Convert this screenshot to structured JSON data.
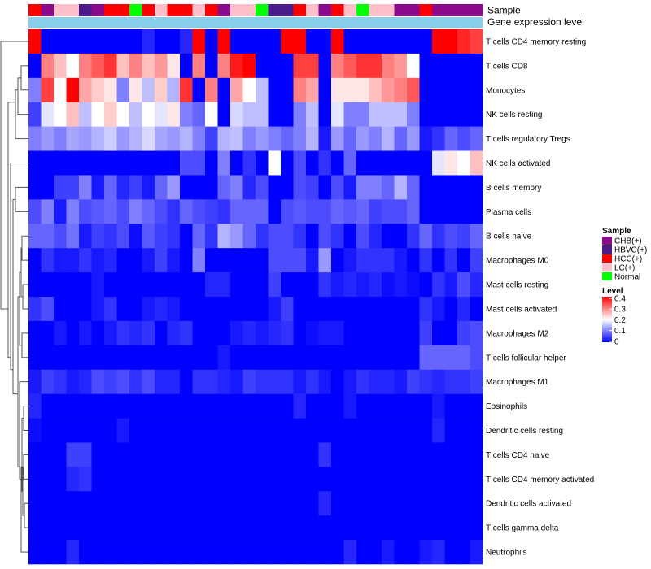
{
  "chart_data": {
    "type": "heatmap",
    "title": "",
    "annotation_tracks": [
      {
        "name": "Sample",
        "kind": "categorical"
      },
      {
        "name": "Gene expression level",
        "kind": "continuous"
      }
    ],
    "sample_annotation": [
      "HCC(+)",
      "CHB(+)",
      "LC(+)",
      "LC(+)",
      "HBVC(+)",
      "CHB(+)",
      "HCC(+)",
      "HCC(+)",
      "Normal",
      "HCC(+)",
      "LC(+)",
      "HCC(+)",
      "HCC(+)",
      "LC(+)",
      "HCC(+)",
      "CHB(+)",
      "LC(+)",
      "LC(+)",
      "Normal",
      "HBVC(+)",
      "HBVC(+)",
      "HCC(+)",
      "LC(+)",
      "CHB(+)",
      "HCC(+)",
      "LC(+)",
      "Normal",
      "LC(+)",
      "LC(+)",
      "CHB(+)",
      "CHB(+)",
      "HCC(+)",
      "CHB(+)",
      "CHB(+)",
      "CHB(+)",
      "CHB(+)"
    ],
    "rows": [
      "T cells CD4 memory resting",
      "T cells CD8",
      "Monocytes",
      "NK cells resting",
      "T cells regulatory  Tregs",
      "NK cells activated",
      "B cells memory",
      "Plasma cells",
      "B cells naive",
      "Macrophages M0",
      "Mast cells resting",
      "Mast cells activated",
      "Macrophages M2",
      "T cells follicular helper",
      "Macrophages M1",
      "Eosinophils",
      "Dendritic cells resting",
      "T cells CD4 naive",
      "T cells CD4 memory activated",
      "Dendritic cells activated",
      "T cells gamma delta",
      "Neutrophils"
    ],
    "values": [
      [
        0.4,
        0,
        0,
        0,
        0,
        0,
        0,
        0,
        0,
        0.03,
        0,
        0,
        0.03,
        0.4,
        0,
        0.4,
        0,
        0,
        0,
        0,
        0.4,
        0.4,
        0,
        0,
        0.4,
        0,
        0,
        0,
        0,
        0,
        0,
        0,
        0.4,
        0.4,
        0.37,
        0.35
      ],
      [
        0,
        0.3,
        0.25,
        0.2,
        0.3,
        0.33,
        0.36,
        0.25,
        0.3,
        0.25,
        0.28,
        0.22,
        0,
        0.3,
        0,
        0.3,
        0.38,
        0.4,
        0,
        0,
        0,
        0.35,
        0.35,
        0,
        0.3,
        0.33,
        0.36,
        0.36,
        0.3,
        0.28,
        0.2,
        0,
        0,
        0,
        0,
        0
      ],
      [
        0.1,
        0.35,
        0.2,
        0.4,
        0.27,
        0.24,
        0.22,
        0.1,
        0.22,
        0.15,
        0.24,
        0.14,
        0.36,
        0,
        0.3,
        0,
        0.27,
        0.2,
        0.15,
        0,
        0,
        0.3,
        0.27,
        0,
        0.22,
        0.22,
        0.22,
        0.25,
        0.28,
        0.3,
        0.33,
        0,
        0,
        0,
        0,
        0
      ],
      [
        0.05,
        0.18,
        0.2,
        0.25,
        0.15,
        0.2,
        0.24,
        0.2,
        0.15,
        0.2,
        0.18,
        0.22,
        0.1,
        0.08,
        0.2,
        0,
        0.17,
        0.15,
        0.15,
        0,
        0,
        0.1,
        0.15,
        0,
        0.18,
        0.1,
        0.1,
        0.15,
        0.15,
        0.15,
        0.1,
        0,
        0,
        0,
        0,
        0
      ],
      [
        0.1,
        0.12,
        0.1,
        0.13,
        0.12,
        0.14,
        0.16,
        0.12,
        0.14,
        0.17,
        0.13,
        0.12,
        0.14,
        0.1,
        0.05,
        0.14,
        0.15,
        0.1,
        0.12,
        0.1,
        0.08,
        0.1,
        0.14,
        0.02,
        0.12,
        0.08,
        0.12,
        0.1,
        0.14,
        0.08,
        0.12,
        0.02,
        0.04,
        0.08,
        0.06,
        0.08
      ],
      [
        0,
        0,
        0,
        0,
        0,
        0,
        0,
        0,
        0,
        0,
        0,
        0,
        0.06,
        0.06,
        0,
        0.1,
        0,
        0.04,
        0,
        0.2,
        0,
        0.06,
        0,
        0.04,
        0,
        0.08,
        0,
        0,
        0,
        0,
        0,
        0,
        0.18,
        0.22,
        0.2,
        0.25
      ],
      [
        0,
        0,
        0.05,
        0.05,
        0.1,
        0.02,
        0.08,
        0.03,
        0.05,
        0.02,
        0.08,
        0.12,
        0,
        0,
        0,
        0.08,
        0.1,
        0.03,
        0.06,
        0,
        0,
        0.06,
        0.05,
        0,
        0.06,
        0.02,
        0.1,
        0.1,
        0.08,
        0.14,
        0.08,
        0,
        0,
        0,
        0,
        0
      ],
      [
        0.06,
        0.1,
        0.02,
        0.1,
        0.06,
        0.07,
        0.08,
        0.06,
        0.1,
        0.08,
        0.06,
        0.04,
        0.08,
        0.06,
        0.05,
        0.04,
        0.08,
        0.08,
        0.08,
        0,
        0.06,
        0.07,
        0.06,
        0.06,
        0.08,
        0.07,
        0.08,
        0.05,
        0.06,
        0.06,
        0.08,
        0,
        0,
        0,
        0,
        0
      ],
      [
        0.08,
        0.08,
        0.06,
        0.09,
        0.02,
        0.05,
        0.04,
        0.06,
        0.01,
        0.07,
        0.05,
        0.04,
        0,
        0.08,
        0.04,
        0.14,
        0.12,
        0.08,
        0.04,
        0.06,
        0.06,
        0.04,
        0,
        0.06,
        0.04,
        0,
        0.06,
        0.03,
        0,
        0,
        0.04,
        0.08,
        0.04,
        0.06,
        0.05,
        0.08
      ],
      [
        0,
        0.04,
        0.02,
        0.02,
        0.04,
        0.02,
        0.03,
        0,
        0,
        0.02,
        0.05,
        0.02,
        0,
        0.1,
        0,
        0,
        0,
        0,
        0,
        0.06,
        0.06,
        0.06,
        0.02,
        0.12,
        0,
        0.02,
        0.04,
        0.04,
        0.04,
        0.02,
        0,
        0.04,
        0,
        0.04,
        0,
        0.05
      ],
      [
        0,
        0,
        0,
        0,
        0,
        0.02,
        0,
        0,
        0,
        0,
        0,
        0,
        0,
        0,
        0.03,
        0.03,
        0,
        0,
        0,
        0.05,
        0,
        0,
        0,
        0.04,
        0.02,
        0.03,
        0.02,
        0.03,
        0.01,
        0.02,
        0.01,
        0,
        0.04,
        0.02,
        0.06,
        0.03
      ],
      [
        0.04,
        0.06,
        0,
        0,
        0,
        0.02,
        0.04,
        0,
        0,
        0.02,
        0.03,
        0.02,
        0,
        0,
        0,
        0,
        0,
        0,
        0,
        0.02,
        0.05,
        0,
        0,
        0,
        0,
        0,
        0,
        0,
        0,
        0,
        0,
        0.04,
        0.02,
        0,
        0.03,
        0
      ],
      [
        0,
        0,
        0.02,
        0,
        0.02,
        0,
        0.02,
        0.04,
        0.03,
        0.04,
        0,
        0.03,
        0.04,
        0,
        0,
        0,
        0.02,
        0.03,
        0.02,
        0.03,
        0.04,
        0,
        0.01,
        0.02,
        0.02,
        0,
        0,
        0,
        0,
        0,
        0,
        0.05,
        0,
        0,
        0.05,
        0.06
      ],
      [
        0,
        0,
        0,
        0,
        0,
        0,
        0,
        0,
        0,
        0,
        0,
        0,
        0,
        0,
        0,
        0.02,
        0,
        0,
        0,
        0,
        0,
        0,
        0,
        0,
        0,
        0,
        0,
        0,
        0,
        0,
        0,
        0.08,
        0.08,
        0.08,
        0.08,
        0.06
      ],
      [
        0.02,
        0.05,
        0.04,
        0.02,
        0.03,
        0.06,
        0.05,
        0.06,
        0.04,
        0.06,
        0.03,
        0.03,
        0,
        0.04,
        0.04,
        0.03,
        0.02,
        0.05,
        0.04,
        0.04,
        0.04,
        0.02,
        0.04,
        0.02,
        0,
        0.02,
        0.04,
        0.03,
        0.03,
        0.02,
        0.05,
        0.04,
        0.03,
        0.04,
        0.04,
        0.05
      ],
      [
        0.03,
        0,
        0,
        0,
        0,
        0,
        0,
        0,
        0,
        0,
        0,
        0,
        0,
        0,
        0,
        0,
        0,
        0,
        0,
        0,
        0,
        0.03,
        0,
        0,
        0,
        0.02,
        0,
        0,
        0,
        0,
        0,
        0,
        0.02,
        0,
        0,
        0
      ],
      [
        0.01,
        0,
        0,
        0,
        0,
        0,
        0,
        0.02,
        0,
        0,
        0,
        0,
        0,
        0,
        0,
        0,
        0,
        0,
        0,
        0,
        0,
        0,
        0,
        0,
        0,
        0,
        0,
        0,
        0,
        0,
        0,
        0,
        0.03,
        0,
        0,
        0
      ],
      [
        0,
        0,
        0,
        0.05,
        0.05,
        0,
        0,
        0,
        0,
        0,
        0,
        0,
        0,
        0,
        0,
        0,
        0,
        0,
        0,
        0,
        0,
        0,
        0,
        0.04,
        0,
        0,
        0,
        0,
        0,
        0,
        0,
        0,
        0,
        0,
        0,
        0
      ],
      [
        0,
        0,
        0,
        0.03,
        0.04,
        0,
        0,
        0,
        0,
        0,
        0,
        0,
        0,
        0,
        0,
        0,
        0,
        0,
        0,
        0,
        0,
        0,
        0,
        0,
        0,
        0,
        0,
        0,
        0,
        0,
        0,
        0,
        0,
        0,
        0,
        0
      ],
      [
        0,
        0,
        0,
        0,
        0,
        0,
        0,
        0,
        0,
        0,
        0,
        0,
        0,
        0,
        0,
        0,
        0,
        0,
        0,
        0,
        0,
        0,
        0,
        0.03,
        0,
        0,
        0,
        0,
        0,
        0,
        0,
        0,
        0,
        0,
        0,
        0
      ],
      [
        0,
        0,
        0,
        0,
        0,
        0,
        0,
        0,
        0,
        0,
        0,
        0,
        0,
        0,
        0,
        0,
        0,
        0,
        0,
        0,
        0,
        0,
        0,
        0,
        0,
        0,
        0,
        0,
        0,
        0,
        0,
        0,
        0,
        0,
        0,
        0
      ],
      [
        0,
        0,
        0,
        0.03,
        0,
        0,
        0,
        0,
        0,
        0,
        0,
        0,
        0,
        0,
        0,
        0,
        0,
        0,
        0,
        0,
        0,
        0,
        0,
        0,
        0,
        0.03,
        0,
        0,
        0.02,
        0,
        0,
        0.02,
        0.03,
        0,
        0,
        0.02
      ]
    ],
    "color_scale": {
      "min": 0,
      "mid": 0.2,
      "max": 0.4,
      "colors": [
        "#0000ff",
        "#ffffff",
        "#ff0000"
      ],
      "ticks": [
        "0.4",
        "0.3",
        "0.2",
        "0.1",
        "0"
      ]
    },
    "legend": {
      "sample_title": "Sample",
      "sample_categories": [
        "CHB(+)",
        "HBVC(+)",
        "HCC(+)",
        "LC(+)",
        "Normal"
      ],
      "level_title": "Level",
      "placement": "right"
    },
    "row_dendrogram": true
  },
  "colors": {
    "CHB(+)": "#8b0a8b",
    "HBVC(+)": "#4b1a8a",
    "HCC(+)": "#ff0000",
    "LC(+)": "#ffc0cb",
    "Normal": "#00ff00",
    "expression_track": "#87ceeb"
  }
}
